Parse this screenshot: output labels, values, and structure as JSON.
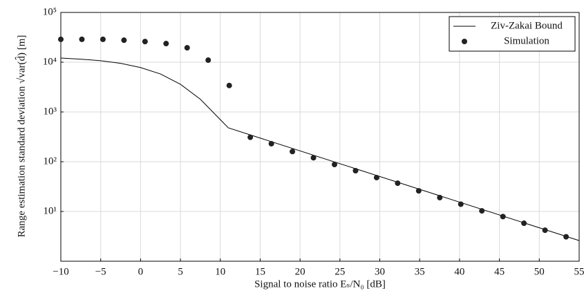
{
  "chart_data": {
    "type": "line",
    "x_label": "Signal to noise ratio Eₛ/N₀ [dB]",
    "y_label": "Range estimation standard deviation √var(d̂) [m]",
    "log_y": true,
    "grid": true,
    "legend_position": "upper-right",
    "xlim": [
      -10,
      55
    ],
    "xticks": [
      {
        "value": -10,
        "label": "−10"
      },
      {
        "value": -5,
        "label": "−5"
      },
      0,
      5,
      10,
      15,
      20,
      25,
      30,
      35,
      40,
      45,
      50,
      55
    ],
    "ylim": [
      1,
      100000
    ],
    "yticks": [
      {
        "value": 10,
        "label": "10¹"
      },
      {
        "value": 100,
        "label": "10²"
      },
      {
        "value": 1000,
        "label": "10³"
      },
      {
        "value": 10000,
        "label": "10⁴"
      },
      {
        "value": 100000,
        "label": "10⁵"
      }
    ],
    "series": [
      {
        "name": "Ziv-Zakai Bound",
        "color": "#000000",
        "style": "line",
        "x": [
          -10,
          -7.5,
          -5,
          -2.5,
          0,
          2.5,
          5,
          7.5,
          10,
          11,
          55
        ],
        "values": [
          12100,
          11500,
          10700,
          9500,
          7800,
          5800,
          3600,
          1800,
          700,
          480,
          2.6
        ]
      },
      {
        "name": "Simulation",
        "color": "#222222",
        "style": "marker",
        "x": [
          -10,
          -7.36,
          -4.72,
          -2.08,
          0.56,
          3.2,
          5.84,
          8.48,
          11.12,
          13.76,
          16.4,
          19.04,
          21.68,
          24.32,
          26.96,
          29.6,
          32.24,
          34.88,
          37.52,
          40.16,
          42.8,
          45.44,
          48.08,
          50.72,
          53.36
        ],
        "values": [
          28800,
          28800,
          28800,
          27700,
          26000,
          23700,
          19500,
          11000,
          3400,
          310,
          230,
          160,
          120,
          88,
          66,
          48,
          37,
          26,
          19,
          14,
          10.3,
          7.9,
          5.8,
          4.2,
          3.1
        ]
      }
    ]
  }
}
